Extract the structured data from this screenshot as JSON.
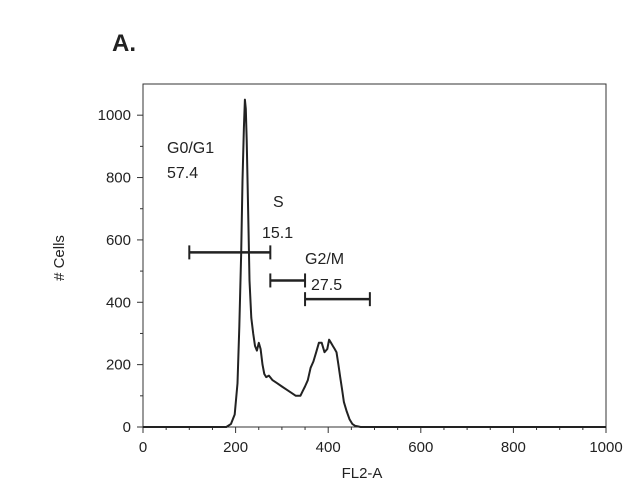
{
  "figure": {
    "panel_label": "A."
  },
  "chart_data": {
    "type": "area",
    "title": "",
    "xlabel": "FL2-A",
    "ylabel": "# Cells",
    "xlim": [
      0,
      1000
    ],
    "ylim": [
      0,
      1100
    ],
    "xticks": [
      0,
      200,
      400,
      600,
      800,
      1000
    ],
    "yticks": [
      0,
      200,
      400,
      600,
      800,
      1000
    ],
    "grid": false,
    "series": [
      {
        "x": [
          180,
          190,
          198,
          204,
          208,
          212,
          215,
          218,
          220,
          222,
          224,
          226,
          228,
          230,
          234,
          238,
          242,
          246,
          250,
          254,
          258,
          262,
          266,
          272,
          280,
          290,
          300,
          310,
          320,
          330,
          340,
          345,
          350,
          356,
          362,
          368,
          374,
          380,
          386,
          392,
          398,
          402,
          406,
          410,
          414,
          418,
          422,
          426,
          430,
          434,
          440,
          446,
          452,
          458,
          464,
          470,
          480,
          490,
          500,
          520
        ],
        "y": [
          0,
          10,
          40,
          140,
          320,
          560,
          790,
          960,
          1050,
          1020,
          920,
          780,
          620,
          470,
          350,
          300,
          260,
          245,
          270,
          250,
          200,
          170,
          160,
          165,
          150,
          140,
          130,
          120,
          110,
          100,
          100,
          115,
          130,
          150,
          190,
          210,
          240,
          270,
          270,
          240,
          250,
          280,
          270,
          260,
          250,
          240,
          200,
          160,
          120,
          80,
          50,
          25,
          10,
          4,
          2,
          0,
          0,
          0,
          0,
          0
        ]
      }
    ],
    "gates": [
      {
        "name": "G0/G1",
        "value": "57.4",
        "x_start": 100,
        "x_end": 275,
        "y_level": 560
      },
      {
        "name": "S",
        "value": "15.1",
        "x_start": 275,
        "x_end": 350,
        "y_level": 470
      },
      {
        "name": "G2/M",
        "value": "27.5",
        "x_start": 350,
        "x_end": 490,
        "y_level": 410
      }
    ]
  }
}
